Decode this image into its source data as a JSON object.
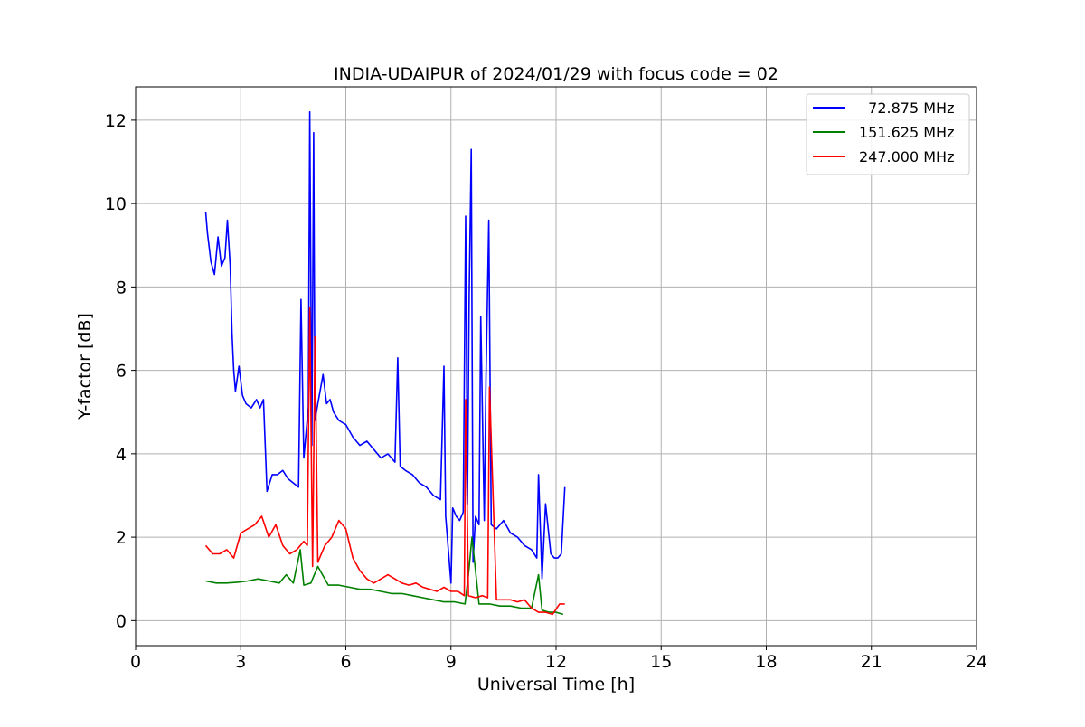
{
  "chart_data": {
    "type": "line",
    "title": "INDIA-UDAIPUR of 2024/01/29 with focus code = 02",
    "xlabel": "Universal Time [h]",
    "ylabel": "Y-factor [dB]",
    "xlim": [
      0,
      24
    ],
    "ylim": [
      -0.6,
      12.8
    ],
    "xticks": [
      0,
      3,
      6,
      9,
      12,
      15,
      18,
      21,
      24
    ],
    "yticks": [
      0,
      2,
      4,
      6,
      8,
      10,
      12
    ],
    "grid": true,
    "legend_position": "top-right",
    "series": [
      {
        "name": "  72.875 MHz",
        "color": "#0000ff",
        "x": [
          2.0,
          2.05,
          2.15,
          2.25,
          2.35,
          2.45,
          2.55,
          2.62,
          2.7,
          2.75,
          2.8,
          2.85,
          2.95,
          3.05,
          3.15,
          3.3,
          3.45,
          3.55,
          3.65,
          3.75,
          3.9,
          4.05,
          4.2,
          4.35,
          4.5,
          4.65,
          4.72,
          4.8,
          4.93,
          4.97,
          5.03,
          5.08,
          5.12,
          5.2,
          5.35,
          5.45,
          5.55,
          5.65,
          5.8,
          6.0,
          6.2,
          6.4,
          6.6,
          6.8,
          7.0,
          7.2,
          7.4,
          7.48,
          7.55,
          7.7,
          7.9,
          8.1,
          8.3,
          8.5,
          8.7,
          8.8,
          8.85,
          9.0,
          9.05,
          9.15,
          9.25,
          9.35,
          9.42,
          9.47,
          9.52,
          9.58,
          9.63,
          9.7,
          9.8,
          9.85,
          9.95,
          10.0,
          10.08,
          10.15,
          10.3,
          10.5,
          10.7,
          10.9,
          11.1,
          11.3,
          11.45,
          11.5,
          11.6,
          11.7,
          11.85,
          11.95,
          12.05,
          12.15,
          12.25
        ],
        "values": [
          9.8,
          9.3,
          8.6,
          8.3,
          9.2,
          8.5,
          8.7,
          9.6,
          8.5,
          6.9,
          6.0,
          5.5,
          6.1,
          5.4,
          5.2,
          5.1,
          5.3,
          5.1,
          5.3,
          3.1,
          3.5,
          3.5,
          3.6,
          3.4,
          3.3,
          3.2,
          7.7,
          3.9,
          5.1,
          12.2,
          4.2,
          11.7,
          4.8,
          5.2,
          5.9,
          5.2,
          5.3,
          5.0,
          4.8,
          4.7,
          4.4,
          4.2,
          4.3,
          4.1,
          3.9,
          4.0,
          3.8,
          6.3,
          3.7,
          3.6,
          3.5,
          3.3,
          3.2,
          3.0,
          2.9,
          6.1,
          2.5,
          0.9,
          2.7,
          2.5,
          2.4,
          2.6,
          9.7,
          2.8,
          7.8,
          11.3,
          1.4,
          2.5,
          2.3,
          7.3,
          2.4,
          5.8,
          9.6,
          2.3,
          2.2,
          2.4,
          2.1,
          2.0,
          1.8,
          1.7,
          1.5,
          3.5,
          1.0,
          2.8,
          1.6,
          1.5,
          1.5,
          1.6,
          3.2
        ]
      },
      {
        "name": "151.625 MHz",
        "color": "#008000",
        "x": [
          2.0,
          2.3,
          2.6,
          2.9,
          3.2,
          3.5,
          3.8,
          4.1,
          4.3,
          4.5,
          4.7,
          4.8,
          5.0,
          5.2,
          5.5,
          5.8,
          6.1,
          6.4,
          6.7,
          7.0,
          7.3,
          7.6,
          7.9,
          8.2,
          8.5,
          8.8,
          9.1,
          9.4,
          9.5,
          9.6,
          9.8,
          10.1,
          10.4,
          10.7,
          11.0,
          11.3,
          11.5,
          11.6,
          11.8,
          12.0,
          12.2
        ],
        "values": [
          0.95,
          0.9,
          0.9,
          0.92,
          0.95,
          1.0,
          0.95,
          0.9,
          1.1,
          0.9,
          1.7,
          0.85,
          0.9,
          1.3,
          0.85,
          0.85,
          0.8,
          0.75,
          0.75,
          0.7,
          0.65,
          0.65,
          0.6,
          0.55,
          0.5,
          0.45,
          0.45,
          0.4,
          1.1,
          2.0,
          0.4,
          0.4,
          0.35,
          0.35,
          0.3,
          0.3,
          1.1,
          0.25,
          0.2,
          0.2,
          0.15
        ]
      },
      {
        "name": "247.000 MHz",
        "color": "#ff0000",
        "x": [
          2.0,
          2.2,
          2.4,
          2.6,
          2.8,
          3.0,
          3.2,
          3.4,
          3.6,
          3.8,
          4.0,
          4.2,
          4.4,
          4.6,
          4.8,
          4.9,
          4.97,
          5.05,
          5.12,
          5.2,
          5.4,
          5.6,
          5.8,
          6.0,
          6.2,
          6.4,
          6.6,
          6.8,
          7.0,
          7.2,
          7.4,
          7.6,
          7.8,
          8.0,
          8.2,
          8.4,
          8.6,
          8.8,
          9.0,
          9.2,
          9.38,
          9.42,
          9.5,
          9.7,
          9.9,
          10.05,
          10.1,
          10.3,
          10.5,
          10.7,
          10.9,
          11.1,
          11.3,
          11.5,
          11.7,
          11.9,
          12.1,
          12.25
        ],
        "values": [
          1.8,
          1.6,
          1.6,
          1.7,
          1.5,
          2.1,
          2.2,
          2.3,
          2.5,
          2.0,
          2.3,
          1.8,
          1.6,
          1.7,
          1.9,
          1.8,
          7.5,
          1.3,
          6.8,
          1.4,
          1.8,
          2.0,
          2.4,
          2.2,
          1.5,
          1.2,
          1.0,
          0.9,
          1.0,
          1.1,
          1.0,
          0.9,
          0.85,
          0.9,
          0.8,
          0.75,
          0.7,
          0.8,
          0.7,
          0.7,
          0.6,
          5.3,
          0.6,
          0.55,
          0.6,
          0.55,
          5.6,
          0.5,
          0.5,
          0.5,
          0.45,
          0.5,
          0.3,
          0.2,
          0.2,
          0.15,
          0.4,
          0.4
        ]
      }
    ]
  }
}
